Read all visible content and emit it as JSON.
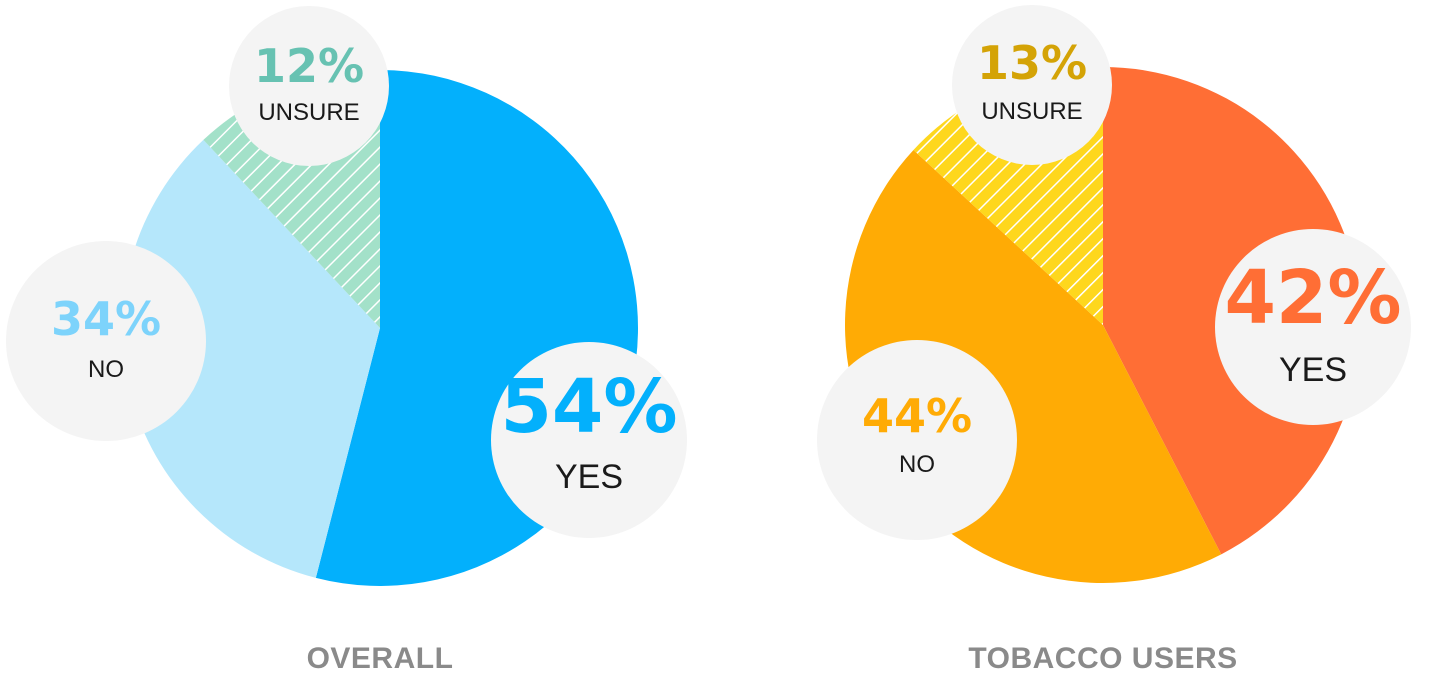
{
  "chart_data": [
    {
      "type": "pie",
      "title": "OVERALL",
      "slices": [
        {
          "label": "YES",
          "value": 54,
          "display": "54%",
          "color": "#03b0fc",
          "text_color": "#03b0fc",
          "hatched": false
        },
        {
          "label": "NO",
          "value": 34,
          "display": "34%",
          "color": "#b5e7fb",
          "text_color": "#7dd3fb",
          "hatched": false
        },
        {
          "label": "UNSURE",
          "value": 12,
          "display": "12%",
          "color": "#a3e1c9",
          "text_color": "#67c2b2",
          "hatched": true
        }
      ]
    },
    {
      "type": "pie",
      "title": "TOBACCO USERS",
      "slices": [
        {
          "label": "YES",
          "value": 42,
          "display": "42%",
          "color": "#ff6e35",
          "text_color": "#ff6e35",
          "hatched": false
        },
        {
          "label": "NO",
          "value": 44,
          "display": "44%",
          "color": "#ffab05",
          "text_color": "#ffab05",
          "hatched": false
        },
        {
          "label": "UNSURE",
          "value": 13,
          "display": "13%",
          "color": "#fed71d",
          "text_color": "#d4a306",
          "hatched": true
        }
      ]
    }
  ],
  "colors": {
    "bubble": "#f4f4f4",
    "label_text": "#1a1a1a",
    "title_text": "#8a8a8a",
    "hatch_line": "#ffffff"
  }
}
